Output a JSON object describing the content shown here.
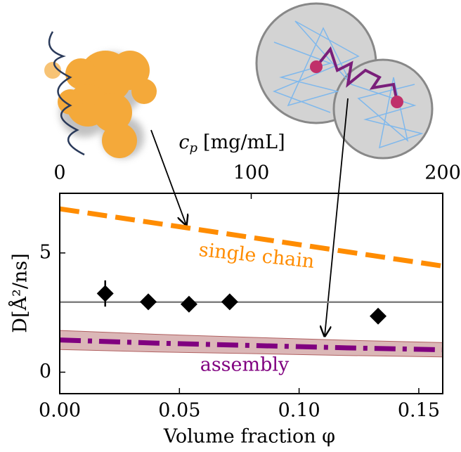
{
  "chart_data": {
    "type": "scatter",
    "xlabel": "Volume fraction φ",
    "ylabel": "D[Å²/ns]",
    "top_xlabel": {
      "symbol": "c",
      "subscript": "p",
      "unit": "[mg/mL]"
    },
    "xlim": [
      0,
      0.16
    ],
    "xticks": [
      {
        "value": 0,
        "label": "0.00"
      },
      {
        "value": 0.05,
        "label": "0.05"
      },
      {
        "value": 0.1,
        "label": "0.10"
      },
      {
        "value": 0.15,
        "label": "0.15"
      }
    ],
    "ylim": [
      -0.9,
      7.5
    ],
    "yticks": [
      0,
      5
    ],
    "top_xlim": [
      0,
      200
    ],
    "top_xticks": [
      0,
      100,
      200
    ],
    "reference_line": {
      "value": 2.94,
      "color": "#808080"
    },
    "series": [
      {
        "name": "single chain",
        "type": "line",
        "style": "dashed",
        "color": "#ff8c00",
        "x": [
          0,
          0.04,
          0.08,
          0.12,
          0.16
        ],
        "values": [
          6.85,
          6.25,
          5.65,
          5.05,
          4.45
        ]
      },
      {
        "name": "assembly",
        "type": "line",
        "style": "dashdot",
        "color": "#800080",
        "band_color": "#b06060",
        "x": [
          0,
          0.04,
          0.08,
          0.12,
          0.16
        ],
        "values": [
          1.35,
          1.22,
          1.12,
          1.02,
          0.94
        ],
        "errors": [
          0.4,
          0.37,
          0.34,
          0.32,
          0.3
        ]
      },
      {
        "type": "scatter",
        "marker": "diamond",
        "color": "#000000",
        "x": [
          0.019,
          0.037,
          0.054,
          0.071,
          0.133
        ],
        "values": [
          3.3,
          2.95,
          2.85,
          2.95,
          2.35
        ],
        "errors": [
          0.55,
          null,
          null,
          null,
          null
        ]
      }
    ]
  }
}
